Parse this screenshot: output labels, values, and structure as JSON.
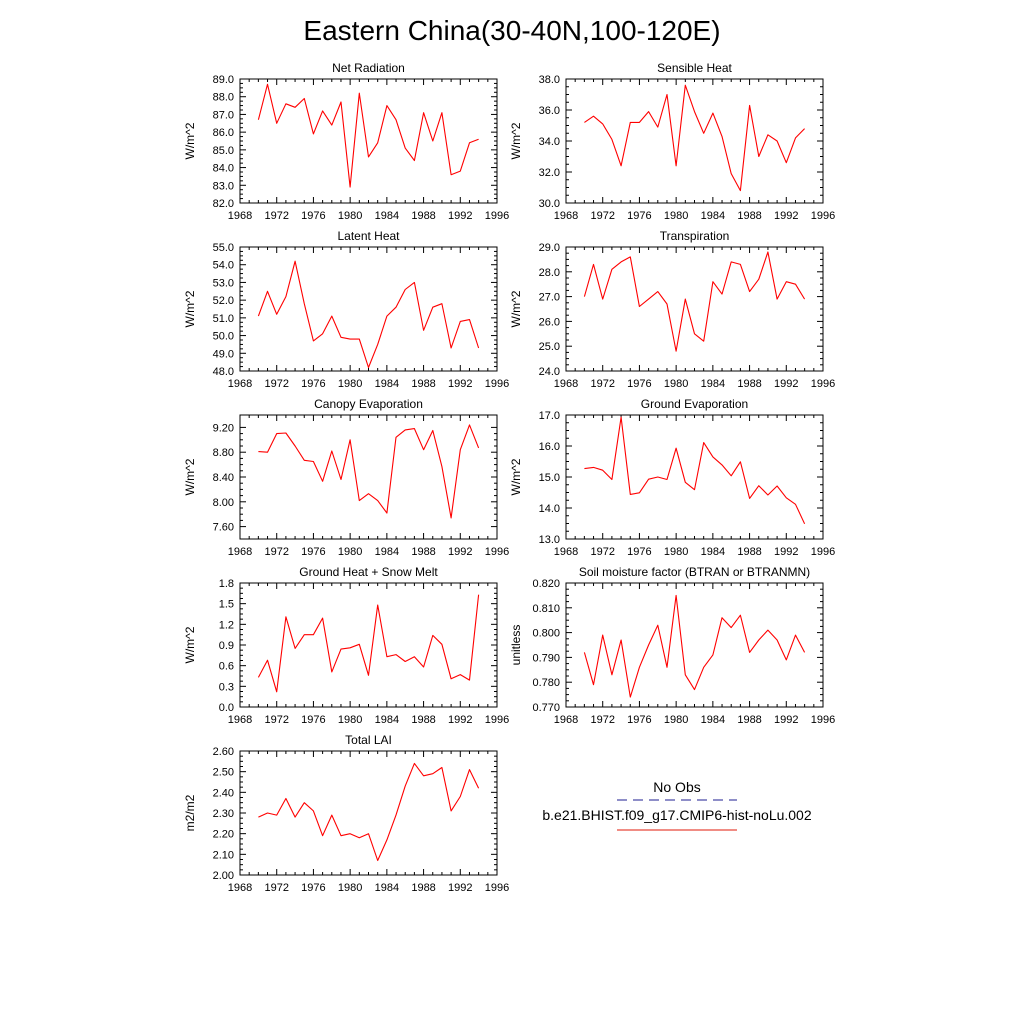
{
  "page": {
    "title": "Eastern China(30-40N,100-120E)"
  },
  "legend": {
    "entries": [
      {
        "label": "No Obs",
        "color": "#4a4aa8",
        "style": "dashed"
      },
      {
        "label": "b.e21.BHIST.f09_g17.CMIP6-hist-noLu.002",
        "color": "#e8473a",
        "style": "solid"
      }
    ]
  },
  "chart_data": [
    {
      "type": "line",
      "title": "Net Radiation",
      "ylabel": "W/m^2",
      "xlim": [
        1968,
        1996
      ],
      "ylim": [
        82,
        89
      ],
      "x_ticks": [
        "1968",
        "1972",
        "1976",
        "1980",
        "1984",
        "1988",
        "1992",
        "1996"
      ],
      "y_ticks": [
        "82.0",
        "83.0",
        "84.0",
        "85.0",
        "86.0",
        "87.0",
        "88.0",
        "89.0"
      ],
      "series": [
        {
          "color": "#ff0000",
          "x": [
            1970,
            1971,
            1972,
            1973,
            1974,
            1975,
            1976,
            1977,
            1978,
            1979,
            1980,
            1981,
            1982,
            1983,
            1984,
            1985,
            1986,
            1987,
            1988,
            1989,
            1990,
            1991,
            1992,
            1993,
            1994
          ],
          "values": [
            86.7,
            88.7,
            86.5,
            87.6,
            87.4,
            87.9,
            85.9,
            87.2,
            86.4,
            87.7,
            82.9,
            88.2,
            84.6,
            85.4,
            87.5,
            86.7,
            85.1,
            84.4,
            87.1,
            85.5,
            87.1,
            83.6,
            83.8,
            85.4,
            85.6
          ]
        }
      ]
    },
    {
      "type": "line",
      "title": "Sensible Heat",
      "ylabel": "W/m^2",
      "xlim": [
        1968,
        1996
      ],
      "ylim": [
        30,
        38
      ],
      "x_ticks": [
        "1968",
        "1972",
        "1976",
        "1980",
        "1984",
        "1988",
        "1992",
        "1996"
      ],
      "y_ticks": [
        "30.0",
        "32.0",
        "34.0",
        "36.0",
        "38.0"
      ],
      "series": [
        {
          "color": "#ff0000",
          "x": [
            1970,
            1971,
            1972,
            1973,
            1974,
            1975,
            1976,
            1977,
            1978,
            1979,
            1980,
            1981,
            1982,
            1983,
            1984,
            1985,
            1986,
            1987,
            1988,
            1989,
            1990,
            1991,
            1992,
            1993,
            1994
          ],
          "values": [
            35.2,
            35.6,
            35.1,
            34.1,
            32.4,
            35.2,
            35.2,
            35.9,
            34.9,
            37.0,
            32.4,
            37.6,
            35.9,
            34.5,
            35.8,
            34.3,
            31.9,
            30.8,
            36.3,
            33.0,
            34.4,
            34.0,
            32.6,
            34.2,
            34.8
          ]
        }
      ]
    },
    {
      "type": "line",
      "title": "Latent Heat",
      "ylabel": "W/m^2",
      "xlim": [
        1968,
        1996
      ],
      "ylim": [
        48,
        55
      ],
      "x_ticks": [
        "1968",
        "1972",
        "1976",
        "1980",
        "1984",
        "1988",
        "1992",
        "1996"
      ],
      "y_ticks": [
        "48.0",
        "49.0",
        "50.0",
        "51.0",
        "52.0",
        "53.0",
        "54.0",
        "55.0"
      ],
      "series": [
        {
          "color": "#ff0000",
          "x": [
            1970,
            1971,
            1972,
            1973,
            1974,
            1975,
            1976,
            1977,
            1978,
            1979,
            1980,
            1981,
            1982,
            1983,
            1984,
            1985,
            1986,
            1987,
            1988,
            1989,
            1990,
            1991,
            1992,
            1993,
            1994
          ],
          "values": [
            51.1,
            52.5,
            51.2,
            52.2,
            54.2,
            51.8,
            49.7,
            50.1,
            51.1,
            49.9,
            49.8,
            49.8,
            48.2,
            49.5,
            51.1,
            51.6,
            52.6,
            53.0,
            50.3,
            51.6,
            51.8,
            49.3,
            50.8,
            50.9,
            49.3
          ]
        }
      ]
    },
    {
      "type": "line",
      "title": "Transpiration",
      "ylabel": "W/m^2",
      "xlim": [
        1968,
        1996
      ],
      "ylim": [
        24,
        29
      ],
      "x_ticks": [
        "1968",
        "1972",
        "1976",
        "1980",
        "1984",
        "1988",
        "1992",
        "1996"
      ],
      "y_ticks": [
        "24.0",
        "25.0",
        "26.0",
        "27.0",
        "28.0",
        "29.0"
      ],
      "series": [
        {
          "color": "#ff0000",
          "x": [
            1970,
            1971,
            1972,
            1973,
            1974,
            1975,
            1976,
            1977,
            1978,
            1979,
            1980,
            1981,
            1982,
            1983,
            1984,
            1985,
            1986,
            1987,
            1988,
            1989,
            1990,
            1991,
            1992,
            1993,
            1994
          ],
          "values": [
            27.0,
            28.3,
            26.9,
            28.1,
            28.4,
            28.6,
            26.6,
            26.9,
            27.2,
            26.7,
            24.8,
            26.9,
            25.5,
            25.2,
            27.6,
            27.1,
            28.4,
            28.3,
            27.2,
            27.7,
            28.8,
            26.9,
            27.6,
            27.5,
            26.9
          ]
        }
      ]
    },
    {
      "type": "line",
      "title": "Canopy Evaporation",
      "ylabel": "W/m^2",
      "xlim": [
        1968,
        1996
      ],
      "ylim": [
        7.4,
        9.4
      ],
      "x_ticks": [
        "1968",
        "1972",
        "1976",
        "1980",
        "1984",
        "1988",
        "1992",
        "1996"
      ],
      "y_ticks": [
        "7.60",
        "8.00",
        "8.40",
        "8.80",
        "9.20"
      ],
      "y_tick_values": [
        7.6,
        8.0,
        8.4,
        8.8,
        9.2
      ],
      "series": [
        {
          "color": "#ff0000",
          "x": [
            1970,
            1971,
            1972,
            1973,
            1974,
            1975,
            1976,
            1977,
            1978,
            1979,
            1980,
            1981,
            1982,
            1983,
            1984,
            1985,
            1986,
            1987,
            1988,
            1989,
            1990,
            1991,
            1992,
            1993,
            1994
          ],
          "values": [
            8.81,
            8.8,
            9.1,
            9.11,
            8.9,
            8.67,
            8.65,
            8.33,
            8.82,
            8.36,
            9.0,
            8.02,
            8.13,
            8.02,
            7.82,
            9.04,
            9.16,
            9.18,
            8.84,
            9.15,
            8.57,
            7.74,
            8.84,
            9.24,
            8.87
          ]
        }
      ]
    },
    {
      "type": "line",
      "title": "Ground Evaporation",
      "ylabel": "W/m^2",
      "xlim": [
        1968,
        1996
      ],
      "ylim": [
        13,
        17
      ],
      "x_ticks": [
        "1968",
        "1972",
        "1976",
        "1980",
        "1984",
        "1988",
        "1992",
        "1996"
      ],
      "y_ticks": [
        "13.0",
        "14.0",
        "15.0",
        "16.0",
        "17.0"
      ],
      "series": [
        {
          "color": "#ff0000",
          "x": [
            1970,
            1971,
            1972,
            1973,
            1974,
            1975,
            1976,
            1977,
            1978,
            1979,
            1980,
            1981,
            1982,
            1983,
            1984,
            1985,
            1986,
            1987,
            1988,
            1989,
            1990,
            1991,
            1992,
            1993,
            1994
          ],
          "values": [
            15.27,
            15.31,
            15.22,
            14.92,
            16.93,
            14.44,
            14.49,
            14.93,
            15.0,
            14.92,
            15.93,
            14.83,
            14.59,
            16.11,
            15.65,
            15.39,
            15.04,
            15.49,
            14.31,
            14.72,
            14.42,
            14.71,
            14.33,
            14.12,
            13.49
          ]
        }
      ]
    },
    {
      "type": "line",
      "title": "Ground Heat + Snow Melt",
      "ylabel": "W/m^2",
      "xlim": [
        1968,
        1996
      ],
      "ylim": [
        0,
        1.8
      ],
      "x_ticks": [
        "1968",
        "1972",
        "1976",
        "1980",
        "1984",
        "1988",
        "1992",
        "1996"
      ],
      "y_ticks": [
        "0.0",
        "0.3",
        "0.6",
        "0.9",
        "1.2",
        "1.5",
        "1.8"
      ],
      "series": [
        {
          "color": "#ff0000",
          "x": [
            1970,
            1971,
            1972,
            1973,
            1974,
            1975,
            1976,
            1977,
            1978,
            1979,
            1980,
            1981,
            1982,
            1983,
            1984,
            1985,
            1986,
            1987,
            1988,
            1989,
            1990,
            1991,
            1992,
            1993,
            1994
          ],
          "values": [
            0.43,
            0.68,
            0.22,
            1.31,
            0.85,
            1.05,
            1.05,
            1.29,
            0.51,
            0.84,
            0.86,
            0.91,
            0.46,
            1.48,
            0.73,
            0.76,
            0.66,
            0.73,
            0.58,
            1.04,
            0.91,
            0.41,
            0.47,
            0.39,
            1.63
          ]
        }
      ]
    },
    {
      "type": "line",
      "title": "Soil moisture factor (BTRAN or BTRANMN)",
      "ylabel": "unitless",
      "xlim": [
        1968,
        1996
      ],
      "ylim": [
        0.77,
        0.82
      ],
      "x_ticks": [
        "1968",
        "1972",
        "1976",
        "1980",
        "1984",
        "1988",
        "1992",
        "1996"
      ],
      "y_ticks": [
        "0.770",
        "0.780",
        "0.790",
        "0.800",
        "0.810",
        "0.820"
      ],
      "series": [
        {
          "color": "#ff0000",
          "x": [
            1970,
            1971,
            1972,
            1973,
            1974,
            1975,
            1976,
            1977,
            1978,
            1979,
            1980,
            1981,
            1982,
            1983,
            1984,
            1985,
            1986,
            1987,
            1988,
            1989,
            1990,
            1991,
            1992,
            1993,
            1994
          ],
          "values": [
            0.792,
            0.779,
            0.799,
            0.783,
            0.797,
            0.774,
            0.786,
            0.795,
            0.803,
            0.786,
            0.815,
            0.783,
            0.777,
            0.786,
            0.791,
            0.806,
            0.802,
            0.807,
            0.792,
            0.797,
            0.801,
            0.797,
            0.789,
            0.799,
            0.792
          ]
        }
      ]
    },
    {
      "type": "line",
      "title": "Total LAI",
      "ylabel": "m2/m2",
      "xlim": [
        1968,
        1996
      ],
      "ylim": [
        2.0,
        2.6
      ],
      "x_ticks": [
        "1968",
        "1972",
        "1976",
        "1980",
        "1984",
        "1988",
        "1992",
        "1996"
      ],
      "y_ticks": [
        "2.00",
        "2.10",
        "2.20",
        "2.30",
        "2.40",
        "2.50",
        "2.60"
      ],
      "series": [
        {
          "color": "#ff0000",
          "x": [
            1970,
            1971,
            1972,
            1973,
            1974,
            1975,
            1976,
            1977,
            1978,
            1979,
            1980,
            1981,
            1982,
            1983,
            1984,
            1985,
            1986,
            1987,
            1988,
            1989,
            1990,
            1991,
            1992,
            1993,
            1994
          ],
          "values": [
            2.28,
            2.3,
            2.29,
            2.37,
            2.28,
            2.35,
            2.31,
            2.19,
            2.29,
            2.19,
            2.2,
            2.18,
            2.2,
            2.07,
            2.17,
            2.29,
            2.43,
            2.54,
            2.48,
            2.49,
            2.52,
            2.31,
            2.38,
            2.51,
            2.42
          ]
        }
      ]
    }
  ]
}
